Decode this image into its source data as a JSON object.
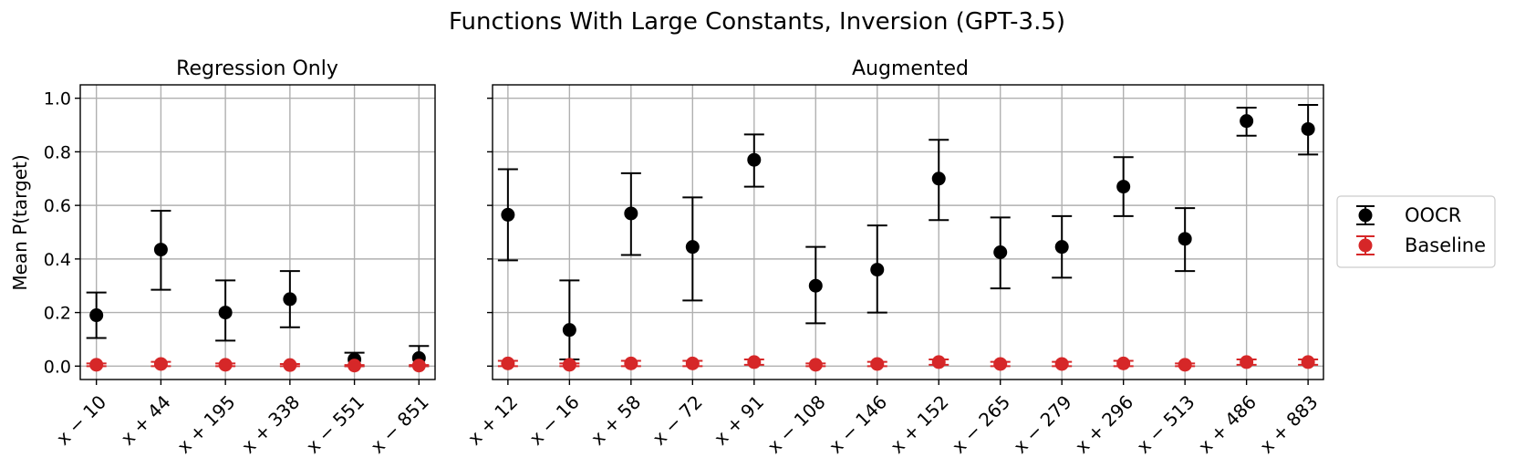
{
  "figure": {
    "title": "Functions With Large Constants, Inversion (GPT-3.5)"
  },
  "legend": {
    "position": "right-outside",
    "items": [
      {
        "label": "OOCR",
        "color": "#000000"
      },
      {
        "label": "Baseline",
        "color": "#d62728"
      }
    ]
  },
  "chart_data": [
    {
      "type": "scatter",
      "subtitle": "Regression Only",
      "ylabel": "Mean P(target)",
      "ylim": [
        -0.05,
        1.05
      ],
      "yticks": [
        0.0,
        0.2,
        0.4,
        0.6,
        0.8,
        1.0
      ],
      "ytick_labels": [
        "0.0",
        "0.2",
        "0.4",
        "0.6",
        "0.8",
        "1.0"
      ],
      "grid": true,
      "categories": [
        "x − 10",
        "x + 44",
        "x + 195",
        "x + 338",
        "x − 551",
        "x − 851"
      ],
      "series": [
        {
          "name": "OOCR",
          "color": "#000000",
          "values": [
            0.19,
            0.435,
            0.2,
            0.25,
            0.025,
            0.03
          ],
          "err_low": [
            0.105,
            0.285,
            0.095,
            0.145,
            0.0,
            0.0
          ],
          "err_high": [
            0.275,
            0.58,
            0.32,
            0.355,
            0.05,
            0.075
          ]
        },
        {
          "name": "Baseline",
          "color": "#d62728",
          "values": [
            0.005,
            0.008,
            0.005,
            0.004,
            0.002,
            0.002
          ],
          "err_low": [
            0.0,
            0.0,
            0.0,
            0.0,
            0.0,
            0.0
          ],
          "err_high": [
            0.01,
            0.016,
            0.01,
            0.008,
            0.004,
            0.004
          ]
        }
      ]
    },
    {
      "type": "scatter",
      "subtitle": "Augmented",
      "ylim": [
        -0.05,
        1.05
      ],
      "grid": true,
      "categories": [
        "x + 12",
        "x − 16",
        "x + 58",
        "x − 72",
        "x + 91",
        "x − 108",
        "x − 146",
        "x + 152",
        "x − 265",
        "x − 279",
        "x + 296",
        "x − 513",
        "x + 486",
        "x + 883"
      ],
      "series": [
        {
          "name": "OOCR",
          "color": "#000000",
          "values": [
            0.565,
            0.135,
            0.57,
            0.445,
            0.77,
            0.3,
            0.36,
            0.7,
            0.425,
            0.445,
            0.67,
            0.475,
            0.915,
            0.885
          ],
          "err_low": [
            0.395,
            0.025,
            0.415,
            0.245,
            0.67,
            0.16,
            0.2,
            0.545,
            0.29,
            0.33,
            0.56,
            0.355,
            0.86,
            0.79
          ],
          "err_high": [
            0.735,
            0.32,
            0.72,
            0.63,
            0.865,
            0.445,
            0.525,
            0.845,
            0.555,
            0.56,
            0.78,
            0.59,
            0.965,
            0.975
          ]
        },
        {
          "name": "Baseline",
          "color": "#d62728",
          "values": [
            0.01,
            0.005,
            0.01,
            0.01,
            0.015,
            0.005,
            0.008,
            0.015,
            0.008,
            0.008,
            0.01,
            0.005,
            0.015,
            0.015
          ],
          "err_low": [
            0.0,
            0.0,
            0.0,
            0.0,
            0.005,
            0.0,
            0.0,
            0.005,
            0.0,
            0.0,
            0.0,
            0.0,
            0.005,
            0.005
          ],
          "err_high": [
            0.02,
            0.01,
            0.02,
            0.02,
            0.025,
            0.01,
            0.016,
            0.025,
            0.016,
            0.016,
            0.02,
            0.01,
            0.025,
            0.025
          ]
        }
      ]
    }
  ]
}
